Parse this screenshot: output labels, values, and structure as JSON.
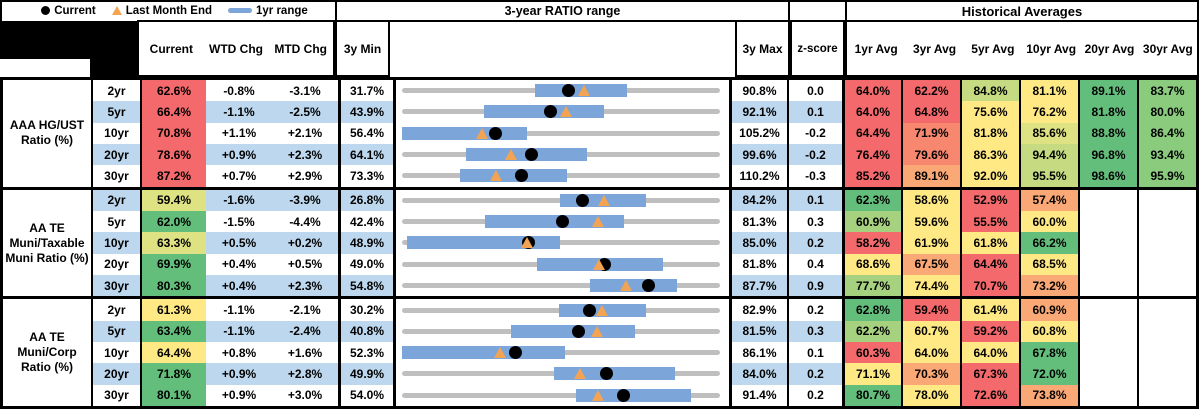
{
  "palette": {
    "red": "#F4696B",
    "redOrange": "#F8876F",
    "orange": "#FAA875",
    "yellow": "#FFE984",
    "yellowGreen": "#DEE283",
    "greenYellow": "#C6DB81",
    "lightGreen": "#A6D17F",
    "medGreen": "#8BCB7E",
    "green": "#63BE7B",
    "stripe": "#BDD7EE",
    "rangeBar": "#7CA5D9",
    "track": "#BFBFBF",
    "triangle": "#F2A452",
    "dot": "#000000"
  },
  "header": {
    "range_title": "3-year RATIO range",
    "hist_title": "Historical Averages",
    "cols": {
      "current": "Current",
      "wtd": "WTD Chg",
      "mtd": "MTD Chg",
      "min3y": "3y Min",
      "max3y": "3y Max",
      "zscore": "z-score"
    },
    "avg_cols": [
      "1yr Avg",
      "3yr Avg",
      "5yr Avg",
      "10yr Avg",
      "20yr Avg",
      "30yr Avg"
    ],
    "legend": [
      {
        "marker": "dot",
        "label": "Current"
      },
      {
        "marker": "triangle",
        "label": "Last Month End"
      },
      {
        "marker": "bar",
        "label": "1yr range"
      }
    ]
  },
  "chart_data": {
    "type": "table",
    "embedded_chart": {
      "type": "range-dot-plot",
      "note": "each row plots Current (black dot), Last Month End (orange triangle) and 1yr range (blue bar) on a 3y Min to 3y Max axis",
      "legend": [
        "Current",
        "Last Month End",
        "1yr range"
      ]
    },
    "groups": [
      {
        "label": "AAA HG/UST Ratio (%)",
        "rows": [
          {
            "term": "2yr",
            "current": {
              "v": "62.6%",
              "c": "red"
            },
            "wtd": "-0.8%",
            "mtd": "-3.1%",
            "min": "31.7%",
            "max": "90.8%",
            "z": "0.0",
            "plot": {
              "min": 31.7,
              "max": 90.8,
              "lo": 56.4,
              "hi": 73.5,
              "cur": 62.6,
              "lme": 65.7
            },
            "avgs": [
              {
                "v": "64.0%",
                "c": "red"
              },
              {
                "v": "62.2%",
                "c": "red"
              },
              {
                "v": "84.8%",
                "c": "greenYellow"
              },
              {
                "v": "81.1%",
                "c": "yellow"
              },
              {
                "v": "89.1%",
                "c": "green"
              },
              {
                "v": "83.7%",
                "c": "medGreen"
              }
            ]
          },
          {
            "term": "5yr",
            "current": {
              "v": "66.4%",
              "c": "red"
            },
            "wtd": "-1.1%",
            "mtd": "-2.5%",
            "min": "43.9%",
            "max": "92.1%",
            "z": "0.1",
            "plot": {
              "min": 43.9,
              "max": 92.1,
              "lo": 56.3,
              "hi": 74.5,
              "cur": 66.4,
              "lme": 68.9
            },
            "avgs": [
              {
                "v": "64.0%",
                "c": "red"
              },
              {
                "v": "64.8%",
                "c": "red"
              },
              {
                "v": "75.6%",
                "c": "yellow"
              },
              {
                "v": "76.2%",
                "c": "yellow"
              },
              {
                "v": "81.8%",
                "c": "green"
              },
              {
                "v": "80.0%",
                "c": "medGreen"
              }
            ]
          },
          {
            "term": "10yr",
            "current": {
              "v": "70.8%",
              "c": "red"
            },
            "wtd": "+1.1%",
            "mtd": "+2.1%",
            "min": "56.4%",
            "max": "105.2%",
            "z": "-0.2",
            "plot": {
              "min": 56.4,
              "max": 105.2,
              "lo": 56.4,
              "hi": 75.6,
              "cur": 70.8,
              "lme": 68.7
            },
            "avgs": [
              {
                "v": "64.4%",
                "c": "red"
              },
              {
                "v": "71.9%",
                "c": "redOrange"
              },
              {
                "v": "81.8%",
                "c": "yellow"
              },
              {
                "v": "85.6%",
                "c": "yellowGreen"
              },
              {
                "v": "88.8%",
                "c": "green"
              },
              {
                "v": "86.4%",
                "c": "medGreen"
              }
            ]
          },
          {
            "term": "20yr",
            "current": {
              "v": "78.6%",
              "c": "red"
            },
            "wtd": "+0.9%",
            "mtd": "+2.3%",
            "min": "64.1%",
            "max": "99.6%",
            "z": "-0.2",
            "plot": {
              "min": 64.1,
              "max": 99.6,
              "lo": 71.3,
              "hi": 84.8,
              "cur": 78.6,
              "lme": 76.3
            },
            "avgs": [
              {
                "v": "76.4%",
                "c": "red"
              },
              {
                "v": "79.6%",
                "c": "redOrange"
              },
              {
                "v": "86.3%",
                "c": "yellow"
              },
              {
                "v": "94.4%",
                "c": "greenYellow"
              },
              {
                "v": "96.8%",
                "c": "green"
              },
              {
                "v": "93.4%",
                "c": "medGreen"
              }
            ]
          },
          {
            "term": "30yr",
            "current": {
              "v": "87.2%",
              "c": "red"
            },
            "wtd": "+0.7%",
            "mtd": "+2.9%",
            "min": "73.3%",
            "max": "110.2%",
            "z": "-0.3",
            "plot": {
              "min": 73.3,
              "max": 110.2,
              "lo": 80.0,
              "hi": 92.4,
              "cur": 87.2,
              "lme": 84.3
            },
            "avgs": [
              {
                "v": "85.2%",
                "c": "red"
              },
              {
                "v": "89.1%",
                "c": "orange"
              },
              {
                "v": "92.0%",
                "c": "yellow"
              },
              {
                "v": "95.5%",
                "c": "greenYellow"
              },
              {
                "v": "98.6%",
                "c": "green"
              },
              {
                "v": "95.9%",
                "c": "medGreen"
              }
            ]
          }
        ]
      },
      {
        "label": "AA TE Muni/Taxable Muni Ratio (%)",
        "rows": [
          {
            "term": "2yr",
            "current": {
              "v": "59.4%",
              "c": "yellowGreen"
            },
            "wtd": "-1.6%",
            "mtd": "-3.9%",
            "min": "26.8%",
            "max": "84.2%",
            "z": "0.1",
            "plot": {
              "min": 26.8,
              "max": 84.2,
              "lo": 55.3,
              "hi": 70.8,
              "cur": 59.4,
              "lme": 63.3
            },
            "avgs": [
              {
                "v": "62.3%",
                "c": "green"
              },
              {
                "v": "58.6%",
                "c": "yellow"
              },
              {
                "v": "52.9%",
                "c": "red"
              },
              {
                "v": "57.4%",
                "c": "orange"
              },
              null,
              null
            ]
          },
          {
            "term": "5yr",
            "current": {
              "v": "62.0%",
              "c": "green"
            },
            "wtd": "-1.5%",
            "mtd": "-4.4%",
            "min": "42.4%",
            "max": "81.3%",
            "z": "0.3",
            "plot": {
              "min": 42.4,
              "max": 81.3,
              "lo": 52.6,
              "hi": 69.5,
              "cur": 62.0,
              "lme": 66.4
            },
            "avgs": [
              {
                "v": "60.9%",
                "c": "lightGreen"
              },
              {
                "v": "59.6%",
                "c": "yellow"
              },
              {
                "v": "55.5%",
                "c": "red"
              },
              {
                "v": "60.0%",
                "c": "yellow"
              },
              null,
              null
            ]
          },
          {
            "term": "10yr",
            "current": {
              "v": "63.3%",
              "c": "yellowGreen"
            },
            "wtd": "+0.5%",
            "mtd": "+0.2%",
            "min": "48.9%",
            "max": "85.0%",
            "z": "0.2",
            "plot": {
              "min": 48.9,
              "max": 85.0,
              "lo": 49.5,
              "hi": 66.8,
              "cur": 63.3,
              "lme": 63.1
            },
            "avgs": [
              {
                "v": "58.2%",
                "c": "red"
              },
              {
                "v": "61.9%",
                "c": "yellow"
              },
              {
                "v": "61.8%",
                "c": "yellow"
              },
              {
                "v": "66.2%",
                "c": "green"
              },
              null,
              null
            ]
          },
          {
            "term": "20yr",
            "current": {
              "v": "69.9%",
              "c": "green"
            },
            "wtd": "+0.4%",
            "mtd": "+0.5%",
            "min": "49.0%",
            "max": "81.8%",
            "z": "0.4",
            "plot": {
              "min": 49.0,
              "max": 81.8,
              "lo": 62.9,
              "hi": 75.9,
              "cur": 69.9,
              "lme": 69.4
            },
            "avgs": [
              {
                "v": "68.6%",
                "c": "yellow"
              },
              {
                "v": "67.5%",
                "c": "orange"
              },
              {
                "v": "64.4%",
                "c": "red"
              },
              {
                "v": "68.5%",
                "c": "yellow"
              },
              null,
              null
            ]
          },
          {
            "term": "30yr",
            "current": {
              "v": "80.3%",
              "c": "green"
            },
            "wtd": "+0.4%",
            "mtd": "+2.3%",
            "min": "54.8%",
            "max": "87.7%",
            "z": "0.9",
            "plot": {
              "min": 54.8,
              "max": 87.7,
              "lo": 74.2,
              "hi": 83.3,
              "cur": 80.3,
              "lme": 78.0
            },
            "avgs": [
              {
                "v": "77.7%",
                "c": "lightGreen"
              },
              {
                "v": "74.4%",
                "c": "yellow"
              },
              {
                "v": "70.7%",
                "c": "red"
              },
              {
                "v": "73.2%",
                "c": "orange"
              },
              null,
              null
            ]
          }
        ]
      },
      {
        "label": "AA TE Muni/Corp Ratio (%)",
        "rows": [
          {
            "term": "2yr",
            "current": {
              "v": "61.3%",
              "c": "yellow"
            },
            "wtd": "-1.1%",
            "mtd": "-2.1%",
            "min": "30.2%",
            "max": "82.9%",
            "z": "0.2",
            "plot": {
              "min": 30.2,
              "max": 82.9,
              "lo": 56.3,
              "hi": 70.7,
              "cur": 61.3,
              "lme": 63.4
            },
            "avgs": [
              {
                "v": "62.8%",
                "c": "green"
              },
              {
                "v": "59.4%",
                "c": "red"
              },
              {
                "v": "61.4%",
                "c": "yellow"
              },
              {
                "v": "60.9%",
                "c": "orange"
              },
              null,
              null
            ]
          },
          {
            "term": "5yr",
            "current": {
              "v": "63.4%",
              "c": "green"
            },
            "wtd": "-1.1%",
            "mtd": "-2.4%",
            "min": "40.8%",
            "max": "81.5%",
            "z": "0.3",
            "plot": {
              "min": 40.8,
              "max": 81.5,
              "lo": 54.8,
              "hi": 70.6,
              "cur": 63.4,
              "lme": 65.8
            },
            "avgs": [
              {
                "v": "62.2%",
                "c": "lightGreen"
              },
              {
                "v": "60.7%",
                "c": "yellow"
              },
              {
                "v": "59.2%",
                "c": "red"
              },
              {
                "v": "60.8%",
                "c": "yellow"
              },
              null,
              null
            ]
          },
          {
            "term": "10yr",
            "current": {
              "v": "64.4%",
              "c": "yellow"
            },
            "wtd": "+0.8%",
            "mtd": "+1.6%",
            "min": "52.3%",
            "max": "86.1%",
            "z": "0.1",
            "plot": {
              "min": 52.3,
              "max": 86.1,
              "lo": 52.3,
              "hi": 69.6,
              "cur": 64.4,
              "lme": 62.8
            },
            "avgs": [
              {
                "v": "60.3%",
                "c": "red"
              },
              {
                "v": "64.0%",
                "c": "yellow"
              },
              {
                "v": "64.0%",
                "c": "yellow"
              },
              {
                "v": "67.8%",
                "c": "green"
              },
              null,
              null
            ]
          },
          {
            "term": "20yr",
            "current": {
              "v": "71.8%",
              "c": "green"
            },
            "wtd": "+0.9%",
            "mtd": "+2.8%",
            "min": "49.9%",
            "max": "84.0%",
            "z": "0.2",
            "plot": {
              "min": 49.9,
              "max": 84.0,
              "lo": 66.2,
              "hi": 79.2,
              "cur": 71.8,
              "lme": 69.0
            },
            "avgs": [
              {
                "v": "71.1%",
                "c": "yellow"
              },
              {
                "v": "70.3%",
                "c": "orange"
              },
              {
                "v": "67.3%",
                "c": "red"
              },
              {
                "v": "72.0%",
                "c": "green"
              },
              null,
              null
            ]
          },
          {
            "term": "30yr",
            "current": {
              "v": "80.1%",
              "c": "green"
            },
            "wtd": "+0.9%",
            "mtd": "+3.0%",
            "min": "54.0%",
            "max": "91.4%",
            "z": "0.2",
            "plot": {
              "min": 54.0,
              "max": 91.4,
              "lo": 74.5,
              "hi": 88.0,
              "cur": 80.1,
              "lme": 77.1
            },
            "avgs": [
              {
                "v": "80.7%",
                "c": "green"
              },
              {
                "v": "78.0%",
                "c": "yellow"
              },
              {
                "v": "72.6%",
                "c": "red"
              },
              {
                "v": "73.8%",
                "c": "orange"
              },
              null,
              null
            ]
          }
        ]
      }
    ]
  }
}
